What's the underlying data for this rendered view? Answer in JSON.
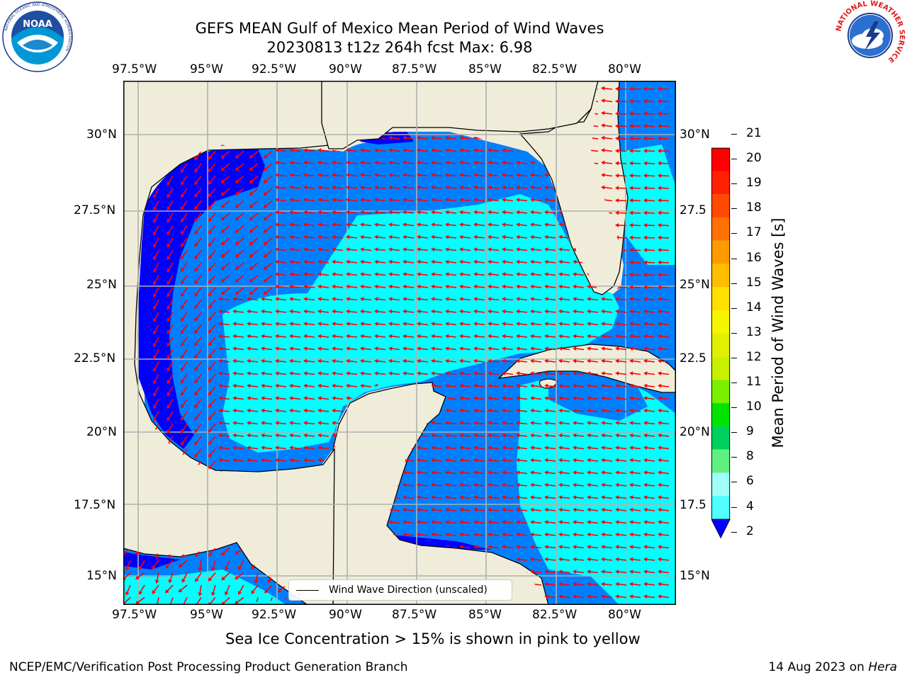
{
  "title_line1": "GEFS MEAN Gulf of Mexico Mean Period of Wind Waves",
  "title_line2": "20230813 t12z 264h fcst   Max: 6.98",
  "lon_labels": [
    "97.5°W",
    "95°W",
    "92.5°W",
    "90°W",
    "87.5°W",
    "85°W",
    "82.5°W",
    "80°W"
  ],
  "lat_labels_left": [
    "30°N",
    "27.5°N",
    "25°N",
    "22.5°N",
    "20°N",
    "17.5°N",
    "15°N"
  ],
  "lat_labels_right": [
    "30°N",
    "27.5",
    "25°N",
    "22.5",
    "20°N",
    "17.5",
    "15°N"
  ],
  "legend_label": "Wind Wave Direction (unscaled)",
  "colorbar": {
    "title": "Mean Period of Wind Waves [s]",
    "ticks": [
      "21",
      "20",
      "19",
      "18",
      "17",
      "16",
      "15",
      "14",
      "13",
      "12",
      "11",
      "10",
      "9",
      "8",
      "6",
      "4",
      "2"
    ],
    "colors": [
      "#ff0000",
      "#ff2000",
      "#ff4a00",
      "#ff7200",
      "#ff9a00",
      "#ffbe00",
      "#ffe000",
      "#f5f500",
      "#e0f000",
      "#c8f000",
      "#78f000",
      "#00e400",
      "#00d060",
      "#60f080",
      "#a0fff8",
      "#50ffff",
      "#00ffff",
      "#0080ff"
    ],
    "under_color": "#0000ff"
  },
  "colors": {
    "land": "#efedd9",
    "sea_dark": "#0000ff",
    "sea_mid": "#0080ff",
    "sea_light": "#00ffff",
    "arrow": "#ff0000"
  },
  "footnote": "Sea Ice Concentration > 15% is shown in pink to yellow",
  "credit_left": "NCEP/EMC/Verification Post Processing Product Generation Branch",
  "credit_date": "14 Aug 2023 on ",
  "credit_host": "Hera",
  "logos": {
    "noaa_text": "NOAA",
    "noaa_ring": "NATIONAL OCEANIC AND ATMOSPHERIC ADMINISTRATION",
    "noaa_ring_bottom": "U.S. DEPARTMENT OF COMMERCE",
    "nws_ring": "NATIONAL WEATHER SERVICE"
  }
}
